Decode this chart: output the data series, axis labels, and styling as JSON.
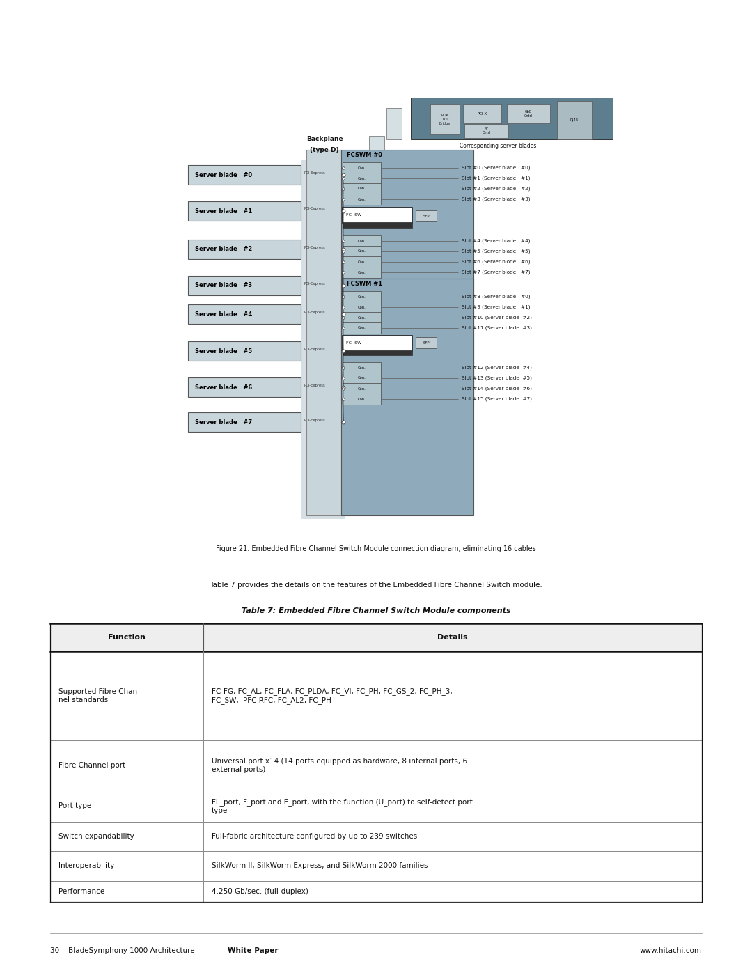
{
  "page_width": 10.8,
  "page_height": 13.97,
  "bg_color": "#ffffff",
  "figure_caption": "Figure 21. Embedded Fibre Channel Switch Module connection diagram, eliminating 16 cables",
  "table_title": "Table 7: Embedded Fibre Channel Switch Module components",
  "table_intro": "Table 7 provides the details on the features of the Embedded Fibre Channel Switch module.",
  "table_headers": [
    "Function",
    "Details"
  ],
  "table_rows": [
    [
      "Supported Fibre Chan-\nnel standards",
      "FC-FG, FC_AL, FC_FLA, FC_PLDA, FC_VI, FC_PH, FC_GS_2, FC_PH_3,\nFC_SW, IPFC RFC, FC_AL2, FC_PH"
    ],
    [
      "Fibre Channel port",
      "Universal port x14 (14 ports equipped as hardware, 8 internal ports, 6\nexternal ports)"
    ],
    [
      "Port type",
      "FL_port, F_port and E_port, with the function (U_port) to self-detect port\ntype"
    ],
    [
      "Switch expandability",
      "Full-fabric architecture configured by up to 239 switches"
    ],
    [
      "Interoperability",
      "SilkWorm II, SilkWorm Express, and SilkWorm 2000 families"
    ],
    [
      "Performance",
      "4.250 Gb/sec. (full-duplex)"
    ]
  ],
  "footer_left_normal": "30    BladeSymphony 1000 Architecture ",
  "footer_left_bold": "White Paper",
  "footer_right": "www.hitachi.com"
}
